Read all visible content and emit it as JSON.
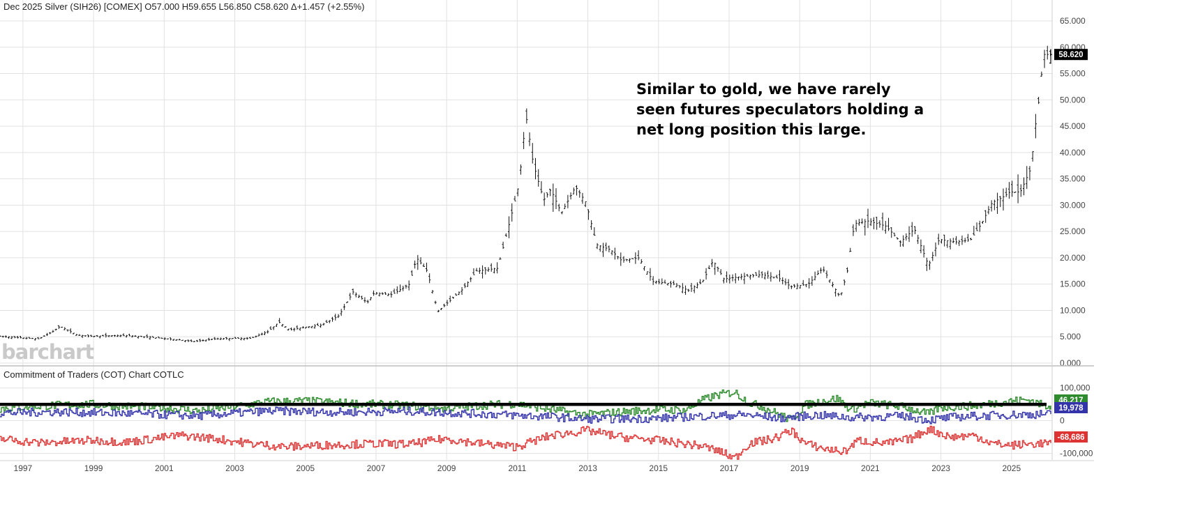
{
  "header": {
    "quote": "Dec 2025 Silver (SIH26) [COMEX] O57.000 H59.655 L56.850 C58.620 Δ+1.457 (+2.55%)"
  },
  "logo_text": "barchart",
  "annotation": "Similar to gold, we have rarely seen futures speculators holding a net long position this large.",
  "cot_header": "Commitment of Traders (COT) Chart  COTLC",
  "colors": {
    "grid": "#e1e1e1",
    "bars": "#111111",
    "cot_green": "#2e8b2e",
    "cot_blue": "#3333aa",
    "cot_red": "#dd3333",
    "ref_line": "#000000",
    "price_badge": "#000000"
  },
  "chart_data": [
    {
      "type": "bar",
      "title": "Dec 2025 Silver (SIH26) [COMEX]",
      "chart_style": "OHLC monthly bars",
      "ohlc_last": {
        "open": 57.0,
        "high": 59.655,
        "low": 56.85,
        "close": 58.62,
        "change": 1.457,
        "change_pct": 2.55
      },
      "last_price_label": "58.620",
      "x_tick_labels": [
        "1997",
        "1999",
        "2001",
        "2003",
        "2005",
        "2007",
        "2009",
        "2011",
        "2013",
        "2015",
        "2017",
        "2019",
        "2021",
        "2023",
        "2025"
      ],
      "y_tick_labels": [
        "0.000",
        "5.000",
        "10.000",
        "15.000",
        "20.000",
        "25.000",
        "30.000",
        "35.000",
        "40.000",
        "45.000",
        "50.000",
        "55.000",
        "60.000",
        "65.000"
      ],
      "ylim": [
        0,
        65
      ],
      "xlim": [
        1996.4,
        2026.2
      ],
      "grid": true,
      "series": [
        {
          "values_kind": "approx monthly close by year [year, price]",
          "points": [
            [
              1996.4,
              5.1
            ],
            [
              1997.0,
              4.8
            ],
            [
              1997.5,
              4.6
            ],
            [
              1997.9,
              6.0
            ],
            [
              1998.1,
              7.0
            ],
            [
              1998.6,
              5.3
            ],
            [
              1999.0,
              5.1
            ],
            [
              1999.5,
              5.2
            ],
            [
              2000.0,
              5.2
            ],
            [
              2000.5,
              5.0
            ],
            [
              2001.0,
              4.7
            ],
            [
              2001.5,
              4.4
            ],
            [
              2001.9,
              4.1
            ],
            [
              2002.5,
              4.6
            ],
            [
              2003.0,
              4.7
            ],
            [
              2003.5,
              4.7
            ],
            [
              2004.0,
              6.0
            ],
            [
              2004.3,
              7.8
            ],
            [
              2004.6,
              6.3
            ],
            [
              2005.0,
              6.8
            ],
            [
              2005.5,
              7.2
            ],
            [
              2006.0,
              9.0
            ],
            [
              2006.4,
              13.5
            ],
            [
              2006.8,
              11.5
            ],
            [
              2007.0,
              13.3
            ],
            [
              2007.5,
              13.0
            ],
            [
              2008.0,
              15.0
            ],
            [
              2008.2,
              20.0
            ],
            [
              2008.5,
              17.5
            ],
            [
              2008.8,
              9.8
            ],
            [
              2009.0,
              11.0
            ],
            [
              2009.5,
              14.0
            ],
            [
              2009.9,
              17.5
            ],
            [
              2010.5,
              18.0
            ],
            [
              2010.9,
              28.5
            ],
            [
              2011.1,
              34.0
            ],
            [
              2011.3,
              47.0
            ],
            [
              2011.5,
              38.0
            ],
            [
              2011.8,
              31.0
            ],
            [
              2012.0,
              33.0
            ],
            [
              2012.3,
              28.5
            ],
            [
              2012.7,
              33.5
            ],
            [
              2013.0,
              30.5
            ],
            [
              2013.3,
              22.5
            ],
            [
              2013.7,
              21.5
            ],
            [
              2014.0,
              19.5
            ],
            [
              2014.5,
              20.0
            ],
            [
              2014.9,
              15.5
            ],
            [
              2015.5,
              15.0
            ],
            [
              2015.9,
              13.8
            ],
            [
              2016.3,
              15.5
            ],
            [
              2016.6,
              19.5
            ],
            [
              2016.9,
              16.0
            ],
            [
              2017.5,
              16.5
            ],
            [
              2018.0,
              16.8
            ],
            [
              2018.5,
              16.0
            ],
            [
              2018.8,
              14.5
            ],
            [
              2019.3,
              15.0
            ],
            [
              2019.7,
              18.0
            ],
            [
              2020.2,
              12.5
            ],
            [
              2020.4,
              17.5
            ],
            [
              2020.6,
              26.5
            ],
            [
              2021.0,
              27.0
            ],
            [
              2021.5,
              26.0
            ],
            [
              2021.9,
              23.0
            ],
            [
              2022.3,
              25.5
            ],
            [
              2022.7,
              18.5
            ],
            [
              2023.0,
              23.5
            ],
            [
              2023.5,
              23.0
            ],
            [
              2023.9,
              23.5
            ],
            [
              2024.2,
              26.5
            ],
            [
              2024.5,
              30.5
            ],
            [
              2024.8,
              31.5
            ],
            [
              2025.0,
              32.5
            ],
            [
              2025.3,
              32.5
            ],
            [
              2025.6,
              37.0
            ],
            [
              2025.75,
              46.5
            ],
            [
              2025.85,
              51.0
            ],
            [
              2025.95,
              58.62
            ]
          ]
        }
      ]
    },
    {
      "type": "line",
      "title": "Commitment of Traders (COT) Chart  COTLC",
      "step": true,
      "ylim": [
        -120000,
        125000
      ],
      "y_tick_labels": [
        "100,000",
        "0",
        "-100,000"
      ],
      "reference_line_value": 50000,
      "grid": true,
      "series": [
        {
          "name": "",
          "color": "#2e8b2e",
          "last_label": "46,217",
          "points": [
            [
              1996.4,
              38000
            ],
            [
              1998.0,
              47000
            ],
            [
              1999.0,
              50000
            ],
            [
              2000.0,
              44000
            ],
            [
              2001.0,
              40000
            ],
            [
              2002.0,
              30000
            ],
            [
              2003.0,
              43000
            ],
            [
              2004.0,
              58000
            ],
            [
              2005.0,
              60000
            ],
            [
              2006.0,
              55000
            ],
            [
              2007.0,
              50000
            ],
            [
              2008.0,
              46000
            ],
            [
              2009.0,
              36000
            ],
            [
              2010.0,
              47000
            ],
            [
              2011.0,
              52000
            ],
            [
              2012.0,
              34000
            ],
            [
              2013.0,
              18000
            ],
            [
              2014.0,
              27000
            ],
            [
              2015.0,
              34000
            ],
            [
              2015.8,
              32000
            ],
            [
              2016.3,
              63000
            ],
            [
              2016.7,
              78000
            ],
            [
              2017.2,
              88000
            ],
            [
              2017.6,
              55000
            ],
            [
              2018.0,
              42000
            ],
            [
              2018.4,
              22000
            ],
            [
              2018.8,
              2000
            ],
            [
              2019.2,
              48000
            ],
            [
              2019.7,
              60000
            ],
            [
              2020.1,
              68000
            ],
            [
              2020.5,
              33000
            ],
            [
              2021.0,
              55000
            ],
            [
              2022.0,
              42000
            ],
            [
              2022.7,
              20000
            ],
            [
              2023.0,
              40000
            ],
            [
              2024.0,
              46000
            ],
            [
              2025.0,
              60000
            ],
            [
              2025.5,
              64000
            ],
            [
              2025.95,
              46217
            ]
          ]
        },
        {
          "name": "",
          "color": "#3333aa",
          "last_label": "19,978",
          "points": [
            [
              1996.4,
              24000
            ],
            [
              1998.0,
              27000
            ],
            [
              2000.0,
              22000
            ],
            [
              2002.0,
              15000
            ],
            [
              2004.0,
              30000
            ],
            [
              2006.0,
              26000
            ],
            [
              2008.0,
              29000
            ],
            [
              2010.0,
              21000
            ],
            [
              2012.0,
              12000
            ],
            [
              2013.0,
              5000
            ],
            [
              2015.0,
              7000
            ],
            [
              2016.5,
              15000
            ],
            [
              2017.5,
              18000
            ],
            [
              2018.5,
              8000
            ],
            [
              2019.5,
              17000
            ],
            [
              2020.5,
              10000
            ],
            [
              2022.0,
              14000
            ],
            [
              2022.7,
              2000
            ],
            [
              2023.5,
              12000
            ],
            [
              2025.0,
              18000
            ],
            [
              2025.95,
              19978
            ]
          ]
        },
        {
          "name": "",
          "color": "#dd3333",
          "last_label": "-68,686",
          "points": [
            [
              1996.4,
              -55000
            ],
            [
              1997.5,
              -68000
            ],
            [
              1999.0,
              -60000
            ],
            [
              2000.0,
              -65000
            ],
            [
              2001.5,
              -45000
            ],
            [
              2002.5,
              -55000
            ],
            [
              2003.5,
              -70000
            ],
            [
              2004.5,
              -80000
            ],
            [
              2005.5,
              -75000
            ],
            [
              2007.0,
              -70000
            ],
            [
              2008.0,
              -72000
            ],
            [
              2009.0,
              -55000
            ],
            [
              2010.0,
              -70000
            ],
            [
              2011.0,
              -80000
            ],
            [
              2012.0,
              -45000
            ],
            [
              2013.0,
              -30000
            ],
            [
              2014.0,
              -50000
            ],
            [
              2015.0,
              -60000
            ],
            [
              2016.3,
              -78000
            ],
            [
              2016.8,
              -95000
            ],
            [
              2017.2,
              -115000
            ],
            [
              2017.6,
              -70000
            ],
            [
              2018.3,
              -55000
            ],
            [
              2018.8,
              -30000
            ],
            [
              2019.2,
              -70000
            ],
            [
              2019.7,
              -85000
            ],
            [
              2020.3,
              -95000
            ],
            [
              2020.7,
              -60000
            ],
            [
              2021.5,
              -70000
            ],
            [
              2022.2,
              -55000
            ],
            [
              2022.7,
              -25000
            ],
            [
              2023.3,
              -50000
            ],
            [
              2024.0,
              -45000
            ],
            [
              2024.5,
              -70000
            ],
            [
              2025.0,
              -75000
            ],
            [
              2025.5,
              -72000
            ],
            [
              2025.95,
              -68686
            ]
          ]
        }
      ]
    }
  ]
}
